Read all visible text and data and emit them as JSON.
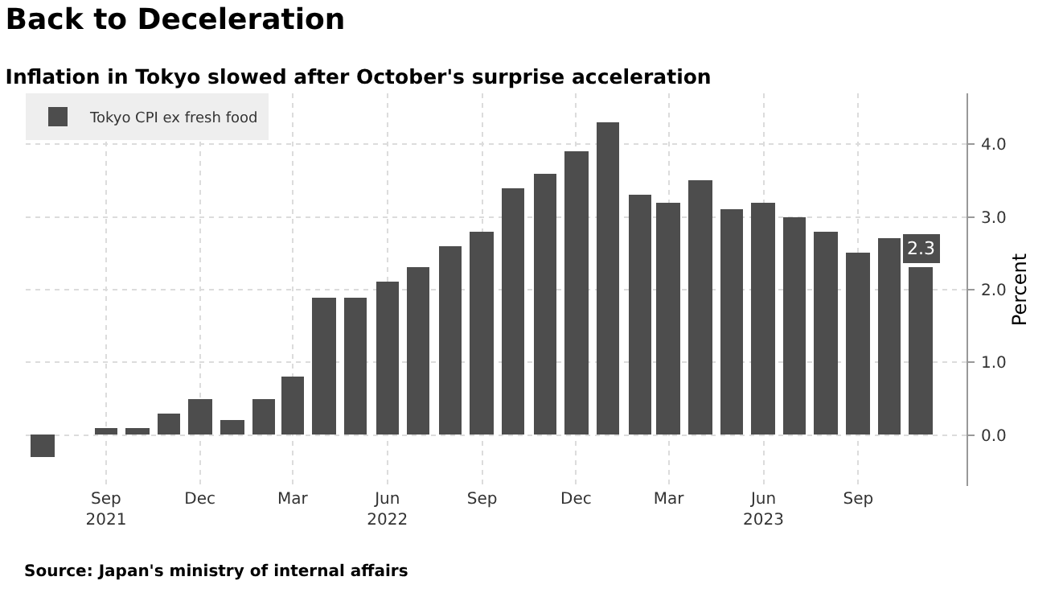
{
  "chart_data": {
    "type": "bar",
    "title": "Back to Deceleration",
    "subtitle": "Inflation in Tokyo slowed after October's surprise acceleration",
    "ylabel": "Percent",
    "x": [
      "2021-07",
      "2021-08",
      "2021-09",
      "2021-10",
      "2021-11",
      "2021-12",
      "2022-01",
      "2022-02",
      "2022-03",
      "2022-04",
      "2022-05",
      "2022-06",
      "2022-07",
      "2022-08",
      "2022-09",
      "2022-10",
      "2022-11",
      "2022-12",
      "2023-01",
      "2023-02",
      "2023-03",
      "2023-04",
      "2023-05",
      "2023-06",
      "2023-07",
      "2023-08",
      "2023-09",
      "2023-10",
      "2023-11"
    ],
    "series": [
      {
        "name": "Tokyo CPI ex fresh food",
        "color": "#4d4d4d",
        "values": [
          -0.3,
          0.0,
          0.1,
          0.1,
          0.3,
          0.5,
          0.2,
          0.5,
          0.8,
          1.9,
          1.9,
          2.1,
          2.3,
          2.6,
          2.8,
          3.4,
          3.6,
          3.9,
          4.3,
          3.3,
          3.2,
          3.5,
          3.1,
          3.2,
          3.0,
          2.8,
          2.5,
          2.7,
          2.3
        ],
        "value_labels": [
          null,
          null,
          null,
          null,
          null,
          null,
          null,
          null,
          null,
          null,
          null,
          null,
          null,
          null,
          null,
          null,
          null,
          null,
          null,
          null,
          null,
          null,
          null,
          null,
          null,
          null,
          null,
          null,
          "2.3"
        ]
      }
    ],
    "xlim": [
      "2021-06-15",
      "2023-12-15"
    ],
    "xticks": [
      {
        "value": "2021-09",
        "label": "Sep\n2021"
      },
      {
        "value": "2021-12",
        "label": "Dec"
      },
      {
        "value": "2022-03",
        "label": "Mar"
      },
      {
        "value": "2022-06",
        "label": "Jun\n2022"
      },
      {
        "value": "2022-09",
        "label": "Sep"
      },
      {
        "value": "2022-12",
        "label": "Dec"
      },
      {
        "value": "2023-03",
        "label": "Mar"
      },
      {
        "value": "2023-06",
        "label": "Jun\n2023"
      },
      {
        "value": "2023-09",
        "label": "Sep"
      }
    ],
    "ylim": [
      -0.7,
      4.7
    ],
    "yticks": [
      {
        "value": 0,
        "label": "0.0"
      },
      {
        "value": 1,
        "label": "1.0"
      },
      {
        "value": 2,
        "label": "2.0"
      },
      {
        "value": 3,
        "label": "3.0"
      },
      {
        "value": 4,
        "label": "4.0"
      }
    ],
    "grid": true,
    "legend": "top left",
    "annotations": [
      "Source: Japan's ministry of internal affairs"
    ]
  }
}
